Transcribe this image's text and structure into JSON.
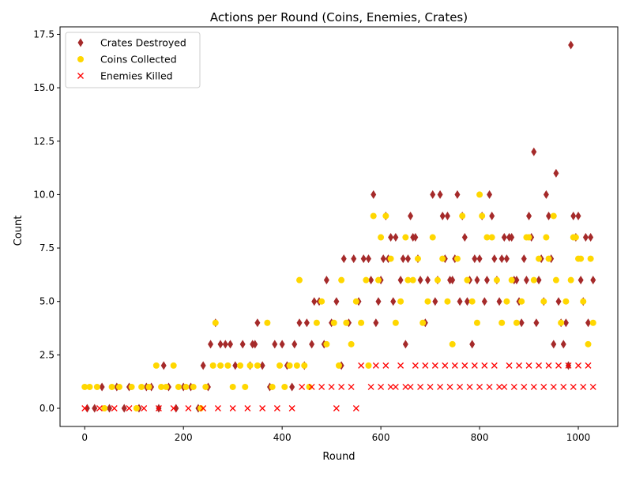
{
  "chart_data": {
    "type": "scatter",
    "title": "Actions per Round (Coins, Enemies, Crates)",
    "xlabel": "Round",
    "ylabel": "Count",
    "xlim": [
      -50,
      1080
    ],
    "ylim": [
      -0.85,
      17.85
    ],
    "xticks": [
      0,
      200,
      400,
      600,
      800,
      1000
    ],
    "xtick_labels": [
      "0",
      "200",
      "400",
      "600",
      "800",
      "1000"
    ],
    "yticks": [
      0,
      2.5,
      5,
      7.5,
      10,
      12.5,
      15,
      17.5
    ],
    "ytick_labels": [
      "0.0",
      "2.5",
      "5.0",
      "7.5",
      "10.0",
      "12.5",
      "15.0",
      "17.5"
    ],
    "grid": false,
    "legend_position": "top-left",
    "series": [
      {
        "name": "Crates Destroyed",
        "marker": "diamond",
        "color": "#a52a2a",
        "values": [
          [
            5,
            0
          ],
          [
            20,
            0
          ],
          [
            35,
            1
          ],
          [
            50,
            0
          ],
          [
            65,
            1
          ],
          [
            80,
            0
          ],
          [
            90,
            1
          ],
          [
            110,
            0
          ],
          [
            125,
            1
          ],
          [
            135,
            1
          ],
          [
            150,
            0
          ],
          [
            160,
            2
          ],
          [
            170,
            1
          ],
          [
            185,
            0
          ],
          [
            200,
            1
          ],
          [
            215,
            1
          ],
          [
            230,
            0
          ],
          [
            240,
            2
          ],
          [
            250,
            1
          ],
          [
            255,
            3
          ],
          [
            265,
            4
          ],
          [
            275,
            3
          ],
          [
            285,
            3
          ],
          [
            295,
            3
          ],
          [
            305,
            2
          ],
          [
            320,
            3
          ],
          [
            335,
            2
          ],
          [
            340,
            3
          ],
          [
            345,
            3
          ],
          [
            350,
            4
          ],
          [
            360,
            2
          ],
          [
            375,
            1
          ],
          [
            385,
            3
          ],
          [
            400,
            3
          ],
          [
            410,
            2
          ],
          [
            420,
            1
          ],
          [
            425,
            3
          ],
          [
            435,
            4
          ],
          [
            445,
            2
          ],
          [
            450,
            4
          ],
          [
            460,
            3
          ],
          [
            465,
            5
          ],
          [
            475,
            5
          ],
          [
            485,
            3
          ],
          [
            490,
            6
          ],
          [
            500,
            4
          ],
          [
            510,
            5
          ],
          [
            520,
            2
          ],
          [
            525,
            7
          ],
          [
            535,
            4
          ],
          [
            545,
            7
          ],
          [
            555,
            5
          ],
          [
            565,
            7
          ],
          [
            575,
            7
          ],
          [
            580,
            6
          ],
          [
            585,
            10
          ],
          [
            590,
            4
          ],
          [
            595,
            5
          ],
          [
            600,
            6
          ],
          [
            605,
            7
          ],
          [
            610,
            9
          ],
          [
            615,
            7
          ],
          [
            620,
            8
          ],
          [
            625,
            5
          ],
          [
            630,
            8
          ],
          [
            640,
            6
          ],
          [
            645,
            7
          ],
          [
            650,
            3
          ],
          [
            655,
            7
          ],
          [
            660,
            9
          ],
          [
            665,
            8
          ],
          [
            670,
            8
          ],
          [
            675,
            7
          ],
          [
            680,
            6
          ],
          [
            690,
            4
          ],
          [
            695,
            6
          ],
          [
            705,
            10
          ],
          [
            710,
            5
          ],
          [
            715,
            6
          ],
          [
            720,
            10
          ],
          [
            725,
            9
          ],
          [
            730,
            7
          ],
          [
            735,
            9
          ],
          [
            740,
            6
          ],
          [
            745,
            6
          ],
          [
            750,
            7
          ],
          [
            755,
            10
          ],
          [
            760,
            5
          ],
          [
            765,
            9
          ],
          [
            770,
            8
          ],
          [
            775,
            5
          ],
          [
            780,
            6
          ],
          [
            785,
            3
          ],
          [
            790,
            7
          ],
          [
            795,
            6
          ],
          [
            800,
            7
          ],
          [
            805,
            9
          ],
          [
            810,
            5
          ],
          [
            815,
            6
          ],
          [
            820,
            10
          ],
          [
            825,
            9
          ],
          [
            830,
            7
          ],
          [
            835,
            6
          ],
          [
            840,
            5
          ],
          [
            845,
            7
          ],
          [
            850,
            8
          ],
          [
            855,
            7
          ],
          [
            860,
            8
          ],
          [
            865,
            8
          ],
          [
            870,
            6
          ],
          [
            875,
            6
          ],
          [
            880,
            5
          ],
          [
            885,
            4
          ],
          [
            890,
            7
          ],
          [
            895,
            6
          ],
          [
            900,
            9
          ],
          [
            905,
            8
          ],
          [
            910,
            12
          ],
          [
            915,
            4
          ],
          [
            920,
            6
          ],
          [
            925,
            7
          ],
          [
            930,
            5
          ],
          [
            935,
            10
          ],
          [
            940,
            9
          ],
          [
            945,
            7
          ],
          [
            950,
            3
          ],
          [
            955,
            11
          ],
          [
            960,
            5
          ],
          [
            965,
            4
          ],
          [
            970,
            3
          ],
          [
            975,
            4
          ],
          [
            980,
            2
          ],
          [
            985,
            17
          ],
          [
            990,
            9
          ],
          [
            995,
            8
          ],
          [
            1000,
            9
          ],
          [
            1005,
            6
          ],
          [
            1010,
            5
          ],
          [
            1015,
            8
          ],
          [
            1020,
            4
          ],
          [
            1025,
            8
          ],
          [
            1030,
            6
          ]
        ]
      },
      {
        "name": "Coins Collected",
        "marker": "circle",
        "color": "#ffd700",
        "values": [
          [
            0,
            1
          ],
          [
            10,
            1
          ],
          [
            25,
            1
          ],
          [
            40,
            0
          ],
          [
            55,
            1
          ],
          [
            70,
            1
          ],
          [
            95,
            1
          ],
          [
            105,
            0
          ],
          [
            115,
            1
          ],
          [
            130,
            1
          ],
          [
            145,
            2
          ],
          [
            155,
            1
          ],
          [
            165,
            1
          ],
          [
            180,
            2
          ],
          [
            190,
            1
          ],
          [
            205,
            1
          ],
          [
            220,
            1
          ],
          [
            235,
            0
          ],
          [
            245,
            1
          ],
          [
            260,
            2
          ],
          [
            265,
            4
          ],
          [
            275,
            2
          ],
          [
            290,
            2
          ],
          [
            300,
            1
          ],
          [
            315,
            2
          ],
          [
            325,
            1
          ],
          [
            335,
            2
          ],
          [
            350,
            2
          ],
          [
            370,
            4
          ],
          [
            380,
            1
          ],
          [
            395,
            2
          ],
          [
            405,
            1
          ],
          [
            415,
            2
          ],
          [
            430,
            2
          ],
          [
            435,
            6
          ],
          [
            445,
            2
          ],
          [
            455,
            1
          ],
          [
            470,
            4
          ],
          [
            480,
            5
          ],
          [
            490,
            3
          ],
          [
            505,
            4
          ],
          [
            515,
            2
          ],
          [
            520,
            6
          ],
          [
            530,
            4
          ],
          [
            540,
            3
          ],
          [
            550,
            5
          ],
          [
            560,
            4
          ],
          [
            570,
            6
          ],
          [
            575,
            2
          ],
          [
            585,
            9
          ],
          [
            595,
            6
          ],
          [
            600,
            8
          ],
          [
            610,
            9
          ],
          [
            620,
            7
          ],
          [
            630,
            4
          ],
          [
            640,
            5
          ],
          [
            650,
            8
          ],
          [
            655,
            6
          ],
          [
            665,
            6
          ],
          [
            675,
            7
          ],
          [
            685,
            4
          ],
          [
            695,
            5
          ],
          [
            705,
            8
          ],
          [
            715,
            6
          ],
          [
            725,
            7
          ],
          [
            735,
            5
          ],
          [
            745,
            3
          ],
          [
            755,
            7
          ],
          [
            765,
            9
          ],
          [
            775,
            6
          ],
          [
            785,
            5
          ],
          [
            795,
            4
          ],
          [
            800,
            10
          ],
          [
            805,
            9
          ],
          [
            815,
            8
          ],
          [
            825,
            8
          ],
          [
            835,
            6
          ],
          [
            845,
            4
          ],
          [
            855,
            5
          ],
          [
            865,
            6
          ],
          [
            875,
            4
          ],
          [
            885,
            5
          ],
          [
            895,
            8
          ],
          [
            900,
            8
          ],
          [
            910,
            6
          ],
          [
            920,
            7
          ],
          [
            930,
            5
          ],
          [
            935,
            8
          ],
          [
            940,
            7
          ],
          [
            950,
            9
          ],
          [
            955,
            6
          ],
          [
            965,
            4
          ],
          [
            975,
            5
          ],
          [
            985,
            6
          ],
          [
            990,
            8
          ],
          [
            995,
            8
          ],
          [
            1000,
            7
          ],
          [
            1005,
            7
          ],
          [
            1010,
            5
          ],
          [
            1020,
            3
          ],
          [
            1025,
            7
          ],
          [
            1030,
            4
          ]
        ]
      },
      {
        "name": "Enemies Killed",
        "marker": "x",
        "color": "#ff0000",
        "values": [
          [
            0,
            0
          ],
          [
            30,
            0
          ],
          [
            60,
            0
          ],
          [
            90,
            0
          ],
          [
            120,
            0
          ],
          [
            150,
            0
          ],
          [
            180,
            0
          ],
          [
            210,
            0
          ],
          [
            240,
            0
          ],
          [
            270,
            0
          ],
          [
            300,
            0
          ],
          [
            330,
            0
          ],
          [
            360,
            0
          ],
          [
            390,
            0
          ],
          [
            420,
            0
          ],
          [
            440,
            1
          ],
          [
            460,
            1
          ],
          [
            480,
            1
          ],
          [
            500,
            1
          ],
          [
            510,
            0
          ],
          [
            520,
            1
          ],
          [
            540,
            1
          ],
          [
            550,
            0
          ],
          [
            560,
            2
          ],
          [
            580,
            1
          ],
          [
            590,
            2
          ],
          [
            600,
            1
          ],
          [
            610,
            2
          ],
          [
            620,
            1
          ],
          [
            630,
            1
          ],
          [
            640,
            2
          ],
          [
            650,
            1
          ],
          [
            660,
            1
          ],
          [
            670,
            2
          ],
          [
            680,
            1
          ],
          [
            690,
            2
          ],
          [
            700,
            1
          ],
          [
            710,
            2
          ],
          [
            720,
            1
          ],
          [
            730,
            2
          ],
          [
            740,
            1
          ],
          [
            750,
            2
          ],
          [
            760,
            1
          ],
          [
            770,
            2
          ],
          [
            780,
            1
          ],
          [
            790,
            2
          ],
          [
            800,
            1
          ],
          [
            810,
            2
          ],
          [
            820,
            1
          ],
          [
            830,
            2
          ],
          [
            840,
            1
          ],
          [
            850,
            1
          ],
          [
            860,
            2
          ],
          [
            870,
            1
          ],
          [
            880,
            2
          ],
          [
            890,
            1
          ],
          [
            900,
            2
          ],
          [
            910,
            1
          ],
          [
            920,
            2
          ],
          [
            930,
            1
          ],
          [
            940,
            2
          ],
          [
            950,
            1
          ],
          [
            960,
            2
          ],
          [
            970,
            1
          ],
          [
            980,
            2
          ],
          [
            990,
            1
          ],
          [
            1000,
            2
          ],
          [
            1010,
            1
          ],
          [
            1020,
            2
          ],
          [
            1030,
            1
          ]
        ]
      }
    ]
  }
}
